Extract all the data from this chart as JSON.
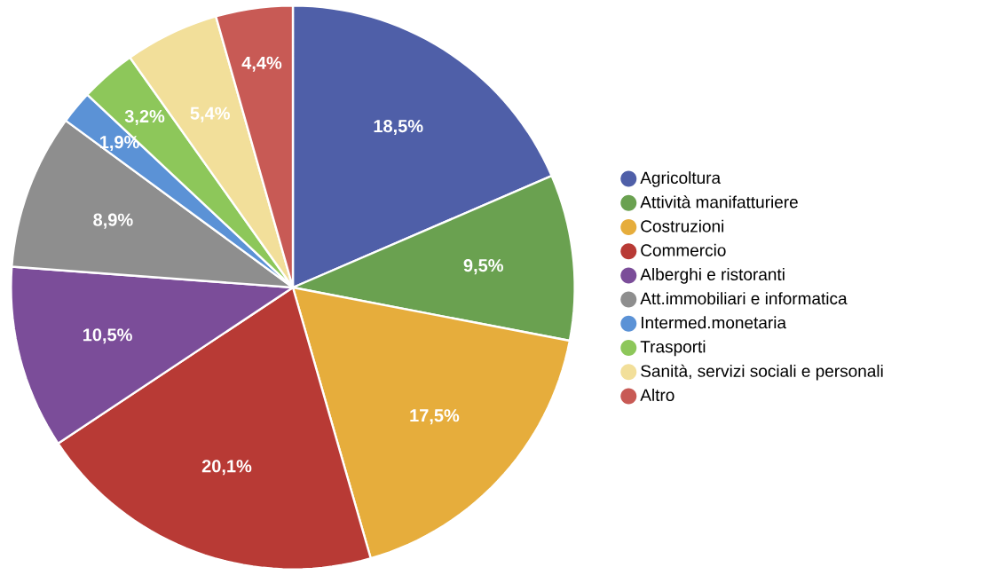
{
  "chart_data": {
    "type": "pie",
    "categories": [
      "Agricoltura",
      "Attività manifatturiere",
      "Costruzioni",
      "Commercio",
      "Alberghi e ristoranti",
      "Att.immobiliari e informatica",
      "Intermed.monetaria",
      "Trasporti",
      "Sanità, servizi sociali e personali",
      "Altro"
    ],
    "values": [
      18.5,
      9.5,
      17.5,
      20.1,
      10.5,
      8.9,
      1.9,
      3.2,
      5.4,
      4.4
    ],
    "value_labels": [
      "18,5%",
      "9,5%",
      "17,5%",
      "20,1%",
      "10,5%",
      "8,9%",
      "1,9%",
      "3,2%",
      "5,4%",
      "4,4%"
    ],
    "colors": [
      "#4f5fa8",
      "#6aa150",
      "#e6ad3c",
      "#b83a35",
      "#7b4d99",
      "#8e8e8e",
      "#5b92d6",
      "#8dc75a",
      "#f2df9a",
      "#c85a55"
    ],
    "legend": "right"
  }
}
